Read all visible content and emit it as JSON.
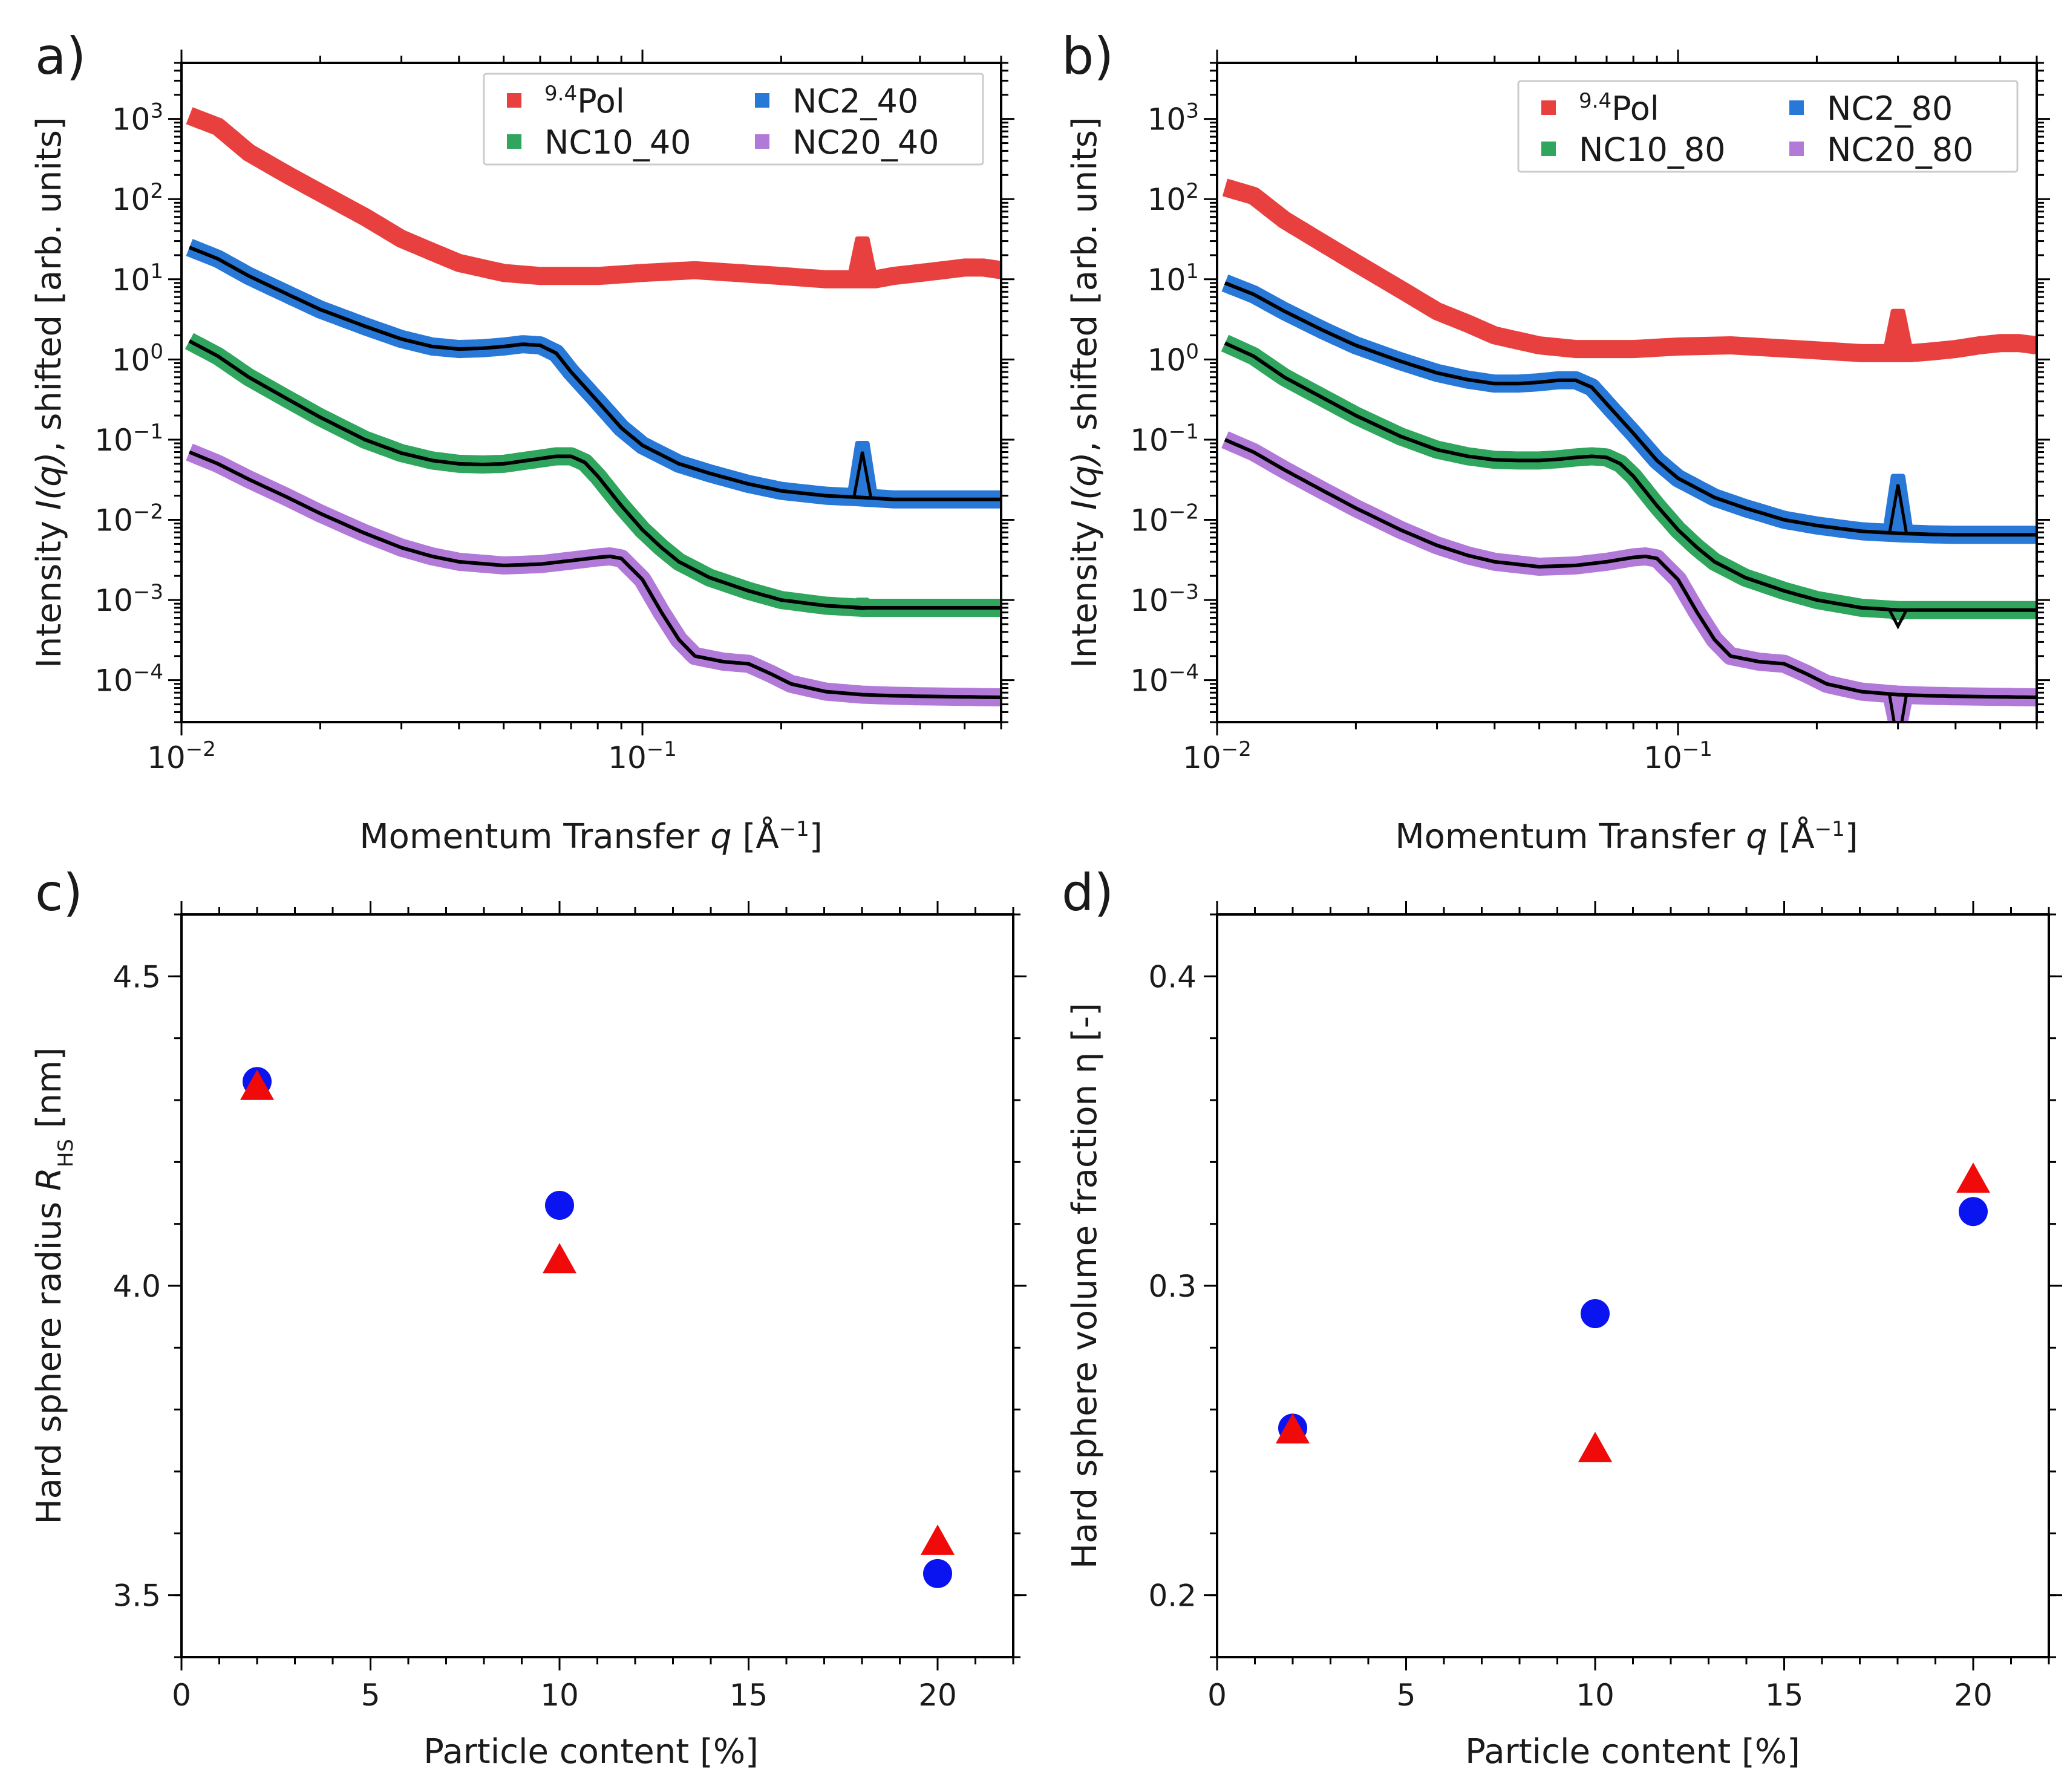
{
  "figure": {
    "panels": [
      "a)",
      "b)",
      "c)",
      "d)"
    ]
  },
  "chart_data": [
    {
      "panel": "a)",
      "type": "line",
      "xscale": "log",
      "yscale": "log",
      "xlim": [
        0.01,
        0.6
      ],
      "ylim": [
        3e-05,
        5000
      ],
      "xlabel_prefix": "Momentum Transfer ",
      "xlabel_var": "q",
      "xlabel_unit": " [Å",
      "xlabel_exp": "−1",
      "xlabel_close": "]",
      "ylabel_prefix": "Intensity ",
      "ylabel_var": "I(q)",
      "ylabel_suffix": ", shifted [arb. units]",
      "xticks": [
        {
          "base": "10",
          "exp": "−2",
          "value": 0.01
        },
        {
          "base": "10",
          "exp": "−1",
          "value": 0.1
        }
      ],
      "yticks": [
        {
          "base": "10",
          "exp": "3",
          "value": 1000
        },
        {
          "base": "10",
          "exp": "2",
          "value": 100
        },
        {
          "base": "10",
          "exp": "1",
          "value": 10
        },
        {
          "base": "10",
          "exp": "0",
          "value": 1
        },
        {
          "base": "10",
          "exp": "−1",
          "value": 0.1
        },
        {
          "base": "10",
          "exp": "−2",
          "value": 0.01
        },
        {
          "base": "10",
          "exp": "−3",
          "value": 0.001
        },
        {
          "base": "10",
          "exp": "−4",
          "value": 0.0001
        }
      ],
      "legend_position": "top-right",
      "series": [
        {
          "name": "Pol",
          "name_sup": "9.4",
          "color": "#e8403f",
          "fit": false,
          "peak": 32,
          "x": [
            0.0104,
            0.012,
            0.014,
            0.017,
            0.02,
            0.025,
            0.03,
            0.035,
            0.04,
            0.05,
            0.06,
            0.08,
            0.1,
            0.13,
            0.16,
            0.2,
            0.25,
            0.28,
            0.3,
            0.32,
            0.35,
            0.4,
            0.45,
            0.5,
            0.55,
            0.6
          ],
          "values": [
            1100,
            800,
            380,
            200,
            120,
            60,
            32,
            22,
            16,
            12,
            11,
            11,
            12,
            13,
            12,
            11,
            10,
            10,
            10,
            10,
            11,
            12,
            13,
            14,
            14,
            13
          ]
        },
        {
          "name": "NC2_40",
          "color": "#2878d8",
          "fit": true,
          "peak": 0.09,
          "x": [
            0.0104,
            0.012,
            0.014,
            0.017,
            0.02,
            0.025,
            0.03,
            0.035,
            0.04,
            0.045,
            0.05,
            0.055,
            0.06,
            0.065,
            0.07,
            0.08,
            0.09,
            0.1,
            0.12,
            0.14,
            0.17,
            0.2,
            0.25,
            0.3,
            0.35,
            0.4,
            0.5,
            0.6
          ],
          "values": [
            25,
            18,
            11,
            6.5,
            4.2,
            2.6,
            1.8,
            1.45,
            1.35,
            1.38,
            1.45,
            1.55,
            1.5,
            1.2,
            0.7,
            0.3,
            0.14,
            0.085,
            0.05,
            0.038,
            0.028,
            0.023,
            0.02,
            0.019,
            0.018,
            0.018,
            0.018,
            0.018
          ]
        },
        {
          "name": "NC10_40",
          "color": "#2fa55e",
          "fit": true,
          "peak": 0.001,
          "x": [
            0.0104,
            0.012,
            0.014,
            0.017,
            0.02,
            0.025,
            0.03,
            0.035,
            0.04,
            0.045,
            0.05,
            0.055,
            0.06,
            0.065,
            0.07,
            0.075,
            0.08,
            0.09,
            0.1,
            0.11,
            0.12,
            0.14,
            0.17,
            0.2,
            0.25,
            0.3,
            0.35,
            0.4,
            0.5,
            0.6
          ],
          "values": [
            1.7,
            1.1,
            0.6,
            0.32,
            0.19,
            0.1,
            0.068,
            0.055,
            0.05,
            0.049,
            0.05,
            0.054,
            0.058,
            0.062,
            0.062,
            0.052,
            0.035,
            0.015,
            0.0075,
            0.0045,
            0.003,
            0.0019,
            0.0013,
            0.001,
            0.00085,
            0.0008,
            0.0008,
            0.0008,
            0.0008,
            0.0008
          ]
        },
        {
          "name": "NC20_40",
          "color": "#b27ad8",
          "fit": true,
          "peak": 0,
          "x": [
            0.0104,
            0.012,
            0.014,
            0.017,
            0.02,
            0.025,
            0.03,
            0.035,
            0.04,
            0.05,
            0.06,
            0.07,
            0.08,
            0.085,
            0.09,
            0.1,
            0.11,
            0.12,
            0.13,
            0.15,
            0.17,
            0.19,
            0.21,
            0.25,
            0.3,
            0.35,
            0.4,
            0.5,
            0.6
          ],
          "values": [
            0.07,
            0.05,
            0.032,
            0.019,
            0.012,
            0.0068,
            0.0045,
            0.0035,
            0.003,
            0.0027,
            0.0028,
            0.0031,
            0.0034,
            0.0035,
            0.0033,
            0.0018,
            0.0007,
            0.00032,
            0.0002,
            0.00017,
            0.00016,
            0.00012,
            9e-05,
            7.2e-05,
            6.6e-05,
            6.4e-05,
            6.3e-05,
            6.2e-05,
            6.1e-05
          ]
        }
      ]
    },
    {
      "panel": "b)",
      "type": "line",
      "xscale": "log",
      "yscale": "log",
      "xlim": [
        0.01,
        0.6
      ],
      "ylim": [
        3e-05,
        5000
      ],
      "xlabel_prefix": "Momentum Transfer ",
      "xlabel_var": "q",
      "xlabel_unit": " [Å",
      "xlabel_exp": "−1",
      "xlabel_close": "]",
      "ylabel_prefix": "Intensity ",
      "ylabel_var": "I(q)",
      "ylabel_suffix": ", shifted [arb. units]",
      "xticks": [
        {
          "base": "10",
          "exp": "−2",
          "value": 0.01
        },
        {
          "base": "10",
          "exp": "−1",
          "value": 0.1
        }
      ],
      "yticks": [
        {
          "base": "10",
          "exp": "3",
          "value": 1000
        },
        {
          "base": "10",
          "exp": "2",
          "value": 100
        },
        {
          "base": "10",
          "exp": "1",
          "value": 10
        },
        {
          "base": "10",
          "exp": "0",
          "value": 1
        },
        {
          "base": "10",
          "exp": "−1",
          "value": 0.1
        },
        {
          "base": "10",
          "exp": "−2",
          "value": 0.01
        },
        {
          "base": "10",
          "exp": "−3",
          "value": 0.001
        },
        {
          "base": "10",
          "exp": "−4",
          "value": 0.0001
        }
      ],
      "legend_position": "top-right",
      "series": [
        {
          "name": "Pol",
          "name_sup": "9.4",
          "color": "#e8403f",
          "fit": false,
          "peak": 4,
          "x": [
            0.0104,
            0.012,
            0.014,
            0.017,
            0.02,
            0.025,
            0.03,
            0.035,
            0.04,
            0.05,
            0.06,
            0.08,
            0.1,
            0.13,
            0.16,
            0.2,
            0.25,
            0.28,
            0.3,
            0.32,
            0.35,
            0.4,
            0.45,
            0.5,
            0.55,
            0.6
          ],
          "values": [
            140,
            110,
            55,
            28,
            16,
            7.5,
            4,
            2.8,
            2,
            1.5,
            1.35,
            1.35,
            1.45,
            1.5,
            1.4,
            1.3,
            1.2,
            1.2,
            1.2,
            1.2,
            1.25,
            1.35,
            1.5,
            1.6,
            1.6,
            1.5
          ]
        },
        {
          "name": "NC2_80",
          "color": "#2878d8",
          "fit": true,
          "peak": 0.035,
          "x": [
            0.0104,
            0.012,
            0.014,
            0.017,
            0.02,
            0.025,
            0.03,
            0.035,
            0.04,
            0.045,
            0.05,
            0.055,
            0.06,
            0.065,
            0.07,
            0.08,
            0.09,
            0.1,
            0.12,
            0.14,
            0.17,
            0.2,
            0.25,
            0.3,
            0.35,
            0.4,
            0.5,
            0.6
          ],
          "values": [
            9,
            6.5,
            4,
            2.3,
            1.5,
            0.95,
            0.68,
            0.56,
            0.5,
            0.5,
            0.52,
            0.55,
            0.55,
            0.45,
            0.28,
            0.12,
            0.055,
            0.033,
            0.019,
            0.014,
            0.01,
            0.0085,
            0.0072,
            0.0068,
            0.0066,
            0.0065,
            0.0065,
            0.0065
          ]
        },
        {
          "name": "NC10_80",
          "color": "#2fa55e",
          "fit": true,
          "peak": 0.0006,
          "x": [
            0.0104,
            0.012,
            0.014,
            0.017,
            0.02,
            0.025,
            0.03,
            0.035,
            0.04,
            0.045,
            0.05,
            0.055,
            0.06,
            0.065,
            0.07,
            0.075,
            0.08,
            0.09,
            0.1,
            0.11,
            0.12,
            0.14,
            0.17,
            0.2,
            0.25,
            0.3,
            0.35,
            0.4,
            0.5,
            0.6
          ],
          "values": [
            1.6,
            1.1,
            0.6,
            0.33,
            0.2,
            0.11,
            0.075,
            0.062,
            0.056,
            0.055,
            0.055,
            0.057,
            0.06,
            0.062,
            0.06,
            0.05,
            0.035,
            0.015,
            0.0075,
            0.0045,
            0.003,
            0.0019,
            0.0013,
            0.001,
            0.0008,
            0.00075,
            0.00075,
            0.00075,
            0.00075,
            0.00075
          ]
        },
        {
          "name": "NC20_80",
          "color": "#b27ad8",
          "fit": true,
          "peak": 2e-05,
          "x": [
            0.0104,
            0.012,
            0.014,
            0.017,
            0.02,
            0.025,
            0.03,
            0.035,
            0.04,
            0.05,
            0.06,
            0.07,
            0.08,
            0.085,
            0.09,
            0.1,
            0.11,
            0.12,
            0.13,
            0.15,
            0.17,
            0.19,
            0.21,
            0.25,
            0.3,
            0.35,
            0.4,
            0.5,
            0.6
          ],
          "values": [
            0.1,
            0.07,
            0.042,
            0.023,
            0.014,
            0.0075,
            0.0048,
            0.0036,
            0.003,
            0.0026,
            0.0027,
            0.003,
            0.0034,
            0.0035,
            0.0033,
            0.0018,
            0.0007,
            0.00032,
            0.0002,
            0.00017,
            0.00016,
            0.00012,
            9e-05,
            7.2e-05,
            6.6e-05,
            6.4e-05,
            6.3e-05,
            6.2e-05,
            6.1e-05
          ]
        }
      ]
    },
    {
      "panel": "c)",
      "type": "scatter",
      "xlim": [
        0,
        22
      ],
      "ylim": [
        3.4,
        4.6
      ],
      "xlabel": "Particle content [%]",
      "ylabel_prefix": "Hard sphere radius ",
      "ylabel_var": "R",
      "ylabel_sub": "HS",
      "ylabel_suffix": " [nm]",
      "xticks": [
        0,
        5,
        10,
        15,
        20
      ],
      "yticks": [
        3.5,
        4.0,
        4.5
      ],
      "ytick_labels": [
        "3.5",
        "4.0",
        "4.5"
      ],
      "series": [
        {
          "name": "circle",
          "marker": "circle",
          "color": "#0a14f0",
          "x": [
            2,
            10,
            20
          ],
          "values": [
            4.33,
            4.13,
            3.535
          ]
        },
        {
          "name": "triangle",
          "marker": "triangle",
          "color": "#f00a0a",
          "x": [
            2,
            10,
            20
          ],
          "values": [
            4.32,
            4.04,
            3.585
          ]
        }
      ]
    },
    {
      "panel": "d)",
      "type": "scatter",
      "xlim": [
        0,
        22
      ],
      "ylim": [
        0.18,
        0.42
      ],
      "xlabel": "Particle content [%]",
      "ylabel": "Hard sphere volume fraction η [-]",
      "xticks": [
        0,
        5,
        10,
        15,
        20
      ],
      "yticks": [
        0.2,
        0.3,
        0.4
      ],
      "ytick_labels": [
        "0.2",
        "0.3",
        "0.4"
      ],
      "series": [
        {
          "name": "circle",
          "marker": "circle",
          "color": "#0a14f0",
          "x": [
            2,
            10,
            20
          ],
          "values": [
            0.254,
            0.291,
            0.324
          ]
        },
        {
          "name": "triangle",
          "marker": "triangle",
          "color": "#f00a0a",
          "x": [
            2,
            10,
            20
          ],
          "values": [
            0.253,
            0.247,
            0.334
          ]
        }
      ]
    }
  ]
}
